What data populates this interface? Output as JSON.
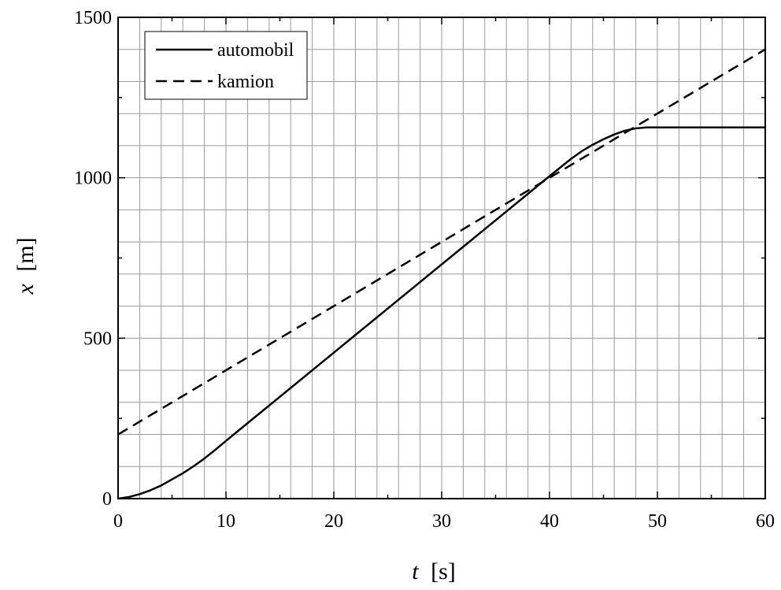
{
  "chart_data": {
    "type": "line",
    "xlabel": {
      "symbol": "t",
      "unit": "[s]"
    },
    "ylabel": {
      "symbol": "x",
      "unit": "[m]"
    },
    "xlim": [
      0,
      60
    ],
    "ylim": [
      0,
      1500
    ],
    "x_ticks": [
      0,
      10,
      20,
      30,
      40,
      50,
      60
    ],
    "y_ticks": [
      0,
      500,
      1000,
      1500
    ],
    "grid": true,
    "grid_minor_step": {
      "x": 2,
      "y": 100
    },
    "legend_position": "top-left",
    "series": [
      {
        "name": "automobil",
        "style": "solid",
        "color": "#000000",
        "x": [
          0,
          1,
          2,
          3,
          4,
          5,
          6,
          7,
          8,
          9,
          10,
          12,
          14,
          16,
          18,
          20,
          22,
          24,
          26,
          28,
          30,
          32,
          34,
          36,
          38,
          40,
          41,
          42,
          43,
          44,
          45,
          46,
          47,
          48,
          49,
          50,
          55,
          60
        ],
        "y": [
          0,
          5,
          14,
          26,
          41,
          60,
          79,
          101,
          125,
          152,
          180,
          235,
          290,
          345,
          400,
          455,
          510,
          565,
          620,
          675,
          730,
          785,
          840,
          895,
          950,
          1005,
          1032,
          1059,
          1083,
          1103,
          1120,
          1135,
          1147,
          1154,
          1157,
          1157,
          1157,
          1157
        ]
      },
      {
        "name": "kamion",
        "style": "dashed",
        "color": "#000000",
        "x": [
          0,
          60
        ],
        "y": [
          200,
          1400
        ]
      }
    ]
  }
}
